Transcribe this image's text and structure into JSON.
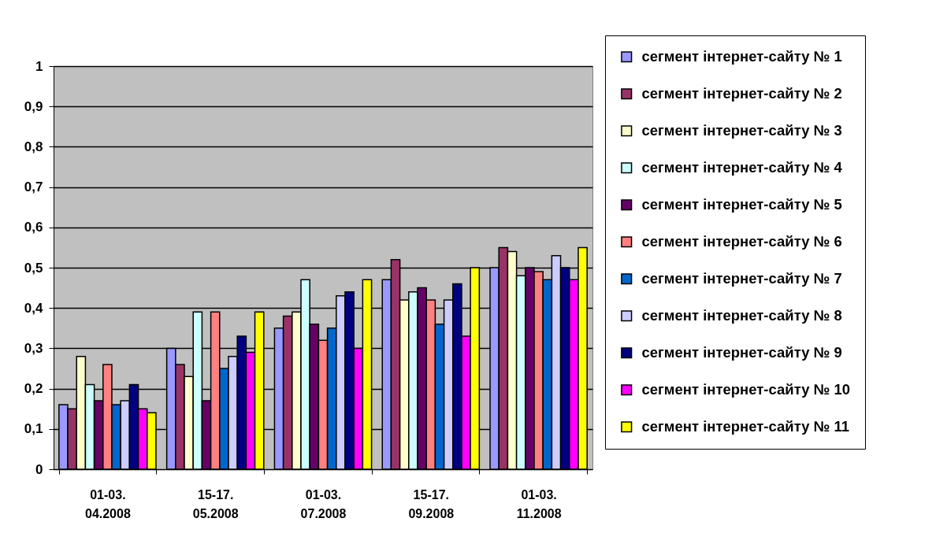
{
  "chart_data": {
    "type": "bar",
    "categories": [
      "01-03. 04.2008",
      "15-17. 05.2008",
      "01-03. 07.2008",
      "15-17. 09.2008",
      "01-03. 11.2008"
    ],
    "series": [
      {
        "name": "сегмент інтернет-сайту № 1",
        "color": "#9999ff",
        "values": [
          0.16,
          0.3,
          0.35,
          0.47,
          0.5
        ]
      },
      {
        "name": "сегмент інтернет-сайту № 2",
        "color": "#993366",
        "values": [
          0.15,
          0.26,
          0.38,
          0.52,
          0.55
        ]
      },
      {
        "name": "сегмент інтернет-сайту № 3",
        "color": "#ffffcc",
        "values": [
          0.28,
          0.23,
          0.39,
          0.42,
          0.54
        ]
      },
      {
        "name": "сегмент інтернет-сайту № 4",
        "color": "#ccffff",
        "values": [
          0.21,
          0.39,
          0.47,
          0.44,
          0.48
        ]
      },
      {
        "name": "сегмент інтернет-сайту № 5",
        "color": "#660066",
        "values": [
          0.17,
          0.17,
          0.36,
          0.45,
          0.5
        ]
      },
      {
        "name": "сегмент інтернет-сайту № 6",
        "color": "#ff8080",
        "values": [
          0.26,
          0.39,
          0.32,
          0.42,
          0.49
        ]
      },
      {
        "name": "сегмент інтернет-сайту № 7",
        "color": "#0066cc",
        "values": [
          0.16,
          0.25,
          0.35,
          0.36,
          0.47
        ]
      },
      {
        "name": "сегмент інтернет-сайту № 8",
        "color": "#ccccff",
        "values": [
          0.17,
          0.28,
          0.43,
          0.42,
          0.53
        ]
      },
      {
        "name": "сегмент інтернет-сайту № 9",
        "color": "#000080",
        "values": [
          0.21,
          0.33,
          0.44,
          0.46,
          0.5
        ]
      },
      {
        "name": "сегмент інтернет-сайту № 10",
        "color": "#ff00ff",
        "values": [
          0.15,
          0.29,
          0.3,
          0.33,
          0.47
        ]
      },
      {
        "name": "сегмент інтернет-сайту № 11",
        "color": "#ffff00",
        "values": [
          0.14,
          0.39,
          0.47,
          0.5,
          0.55
        ]
      }
    ],
    "ylim": [
      0,
      1
    ],
    "yticks": [
      0,
      {
        "value": 0.1,
        "label": "0,1"
      },
      {
        "value": 0.2,
        "label": "0,2"
      },
      {
        "value": 0.3,
        "label": "0,3"
      },
      {
        "value": 0.4,
        "label": "0,4"
      },
      {
        "value": 0.5,
        "label": "0,5"
      },
      {
        "value": 0.6,
        "label": "0,6"
      },
      {
        "value": 0.7,
        "label": "0,7"
      },
      {
        "value": 0.8,
        "label": "0,8"
      },
      {
        "value": 0.9,
        "label": "0,9"
      },
      1
    ],
    "grid": "y",
    "legend": "right"
  }
}
